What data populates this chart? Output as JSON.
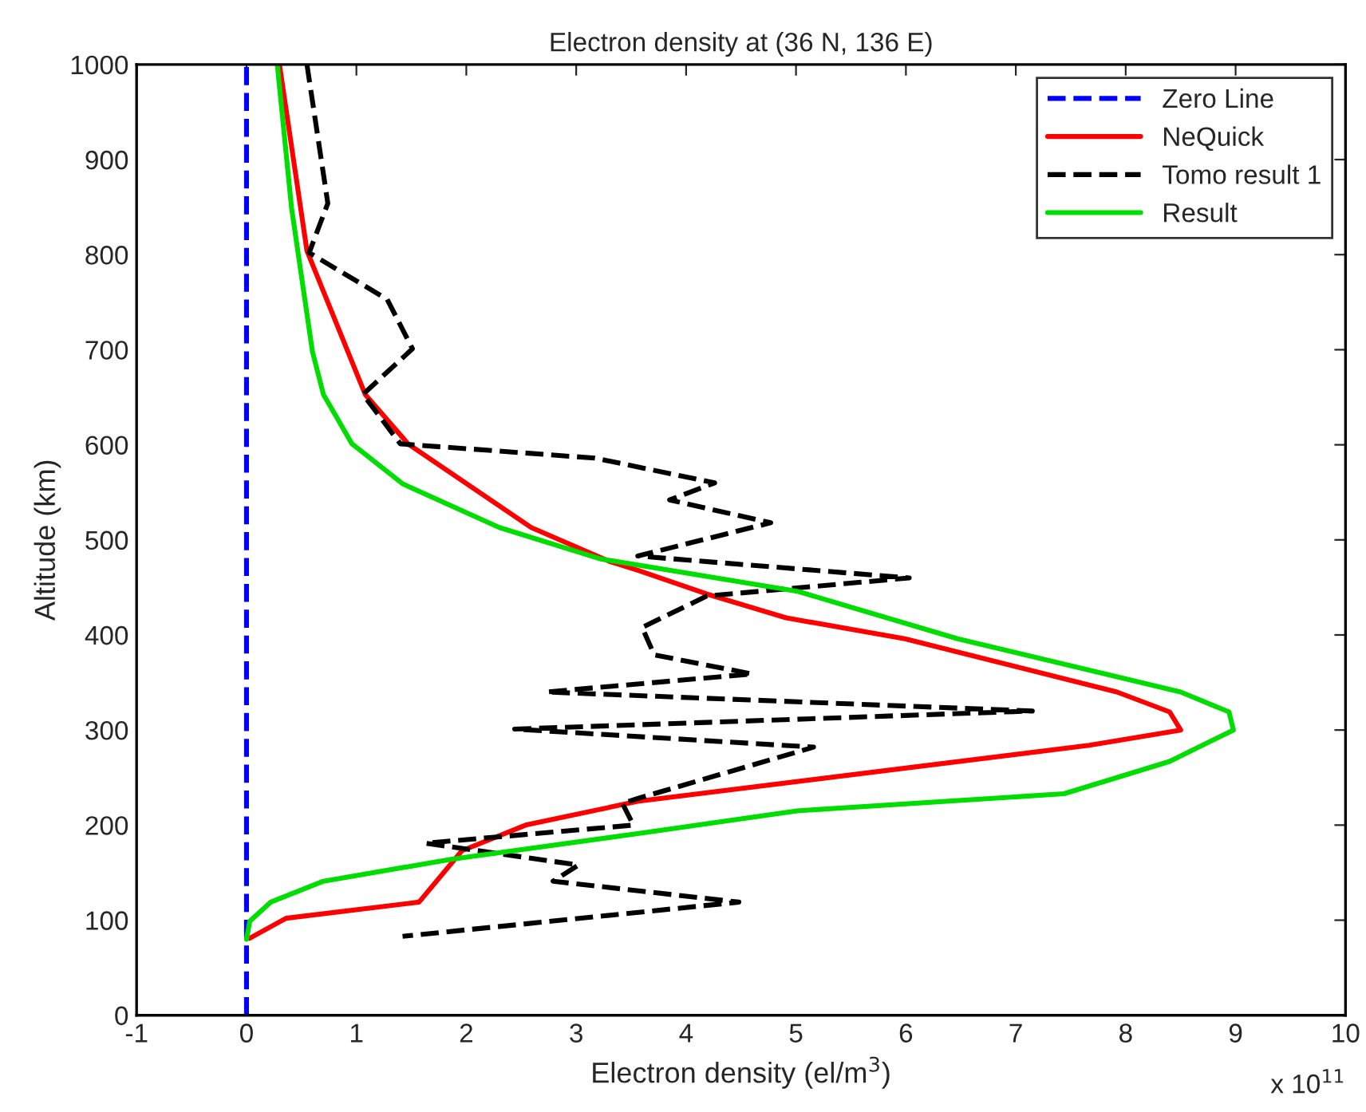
{
  "chart_data": {
    "type": "line",
    "title": "Electron density at (36 N, 136 E)",
    "xlabel": "Electron density (el/m$^{3}$)",
    "ylabel": "Altitude (km)",
    "annotations": [
      "x 10$^{11}$"
    ],
    "xlim": [
      -1,
      10
    ],
    "xticks": [
      -1,
      0,
      1,
      2,
      3,
      4,
      5,
      6,
      7,
      8,
      9,
      10
    ],
    "ylim": [
      0,
      1000
    ],
    "yticks": [
      0,
      100,
      200,
      300,
      400,
      500,
      600,
      700,
      800,
      900,
      1000
    ],
    "grid": false,
    "legend": "top right",
    "series": [
      {
        "name": "Zero Line",
        "color": "#0000ff",
        "line_style": "dashed",
        "x": [
          0,
          0
        ],
        "values": [
          0,
          1000
        ]
      },
      {
        "name": "NeQuick",
        "color": "#ff0000",
        "line_style": "solid",
        "x": [
          0.3,
          0.55,
          1.08,
          1.47,
          2.59,
          3.31,
          3.56,
          4.19,
          4.91,
          5.99,
          7.92,
          8.4,
          8.5,
          7.67,
          3.56,
          2.54,
          1.96,
          1.57,
          0.36,
          0.03
        ],
        "values": [
          1000,
          804,
          653,
          601,
          513,
          477,
          468,
          443,
          418,
          396,
          340,
          319,
          300,
          284,
          225,
          200,
          173,
          119,
          102,
          81
        ]
      },
      {
        "name": "Tomo result 1",
        "color": "#000000",
        "line_style": "dashed",
        "x": [
          0.55,
          0.74,
          0.57,
          1.28,
          1.51,
          1.06,
          1.4,
          3.17,
          4.26,
          3.85,
          4.77,
          3.56,
          6.03,
          4.19,
          3.6,
          3.71,
          4.6,
          2.73,
          7.15,
          2.44,
          5.16,
          3.56,
          3.42,
          3.52,
          1.63,
          3.02,
          2.79,
          4.48,
          1.42
        ],
        "values": [
          1000,
          854,
          802,
          753,
          701,
          653,
          601,
          586,
          560,
          542,
          518,
          483,
          460,
          441,
          408,
          379,
          359,
          340,
          320,
          301,
          282,
          228,
          223,
          200,
          181,
          158,
          141,
          119,
          83
        ]
      },
      {
        "name": "Result",
        "color": "#00dd00",
        "line_style": "solid",
        "x": [
          0.28,
          0.41,
          0.6,
          0.7,
          0.96,
          1.42,
          2.3,
          3.22,
          5.01,
          6.47,
          8.5,
          8.94,
          8.98,
          8.4,
          7.44,
          5.01,
          3.56,
          1.86,
          0.7,
          0.22,
          0.03,
          0
        ],
        "values": [
          1000,
          849,
          698,
          653,
          601,
          559,
          513,
          480,
          446,
          396,
          340,
          319,
          300,
          267,
          233,
          215,
          191,
          164,
          141,
          119,
          99,
          80
        ]
      }
    ]
  }
}
